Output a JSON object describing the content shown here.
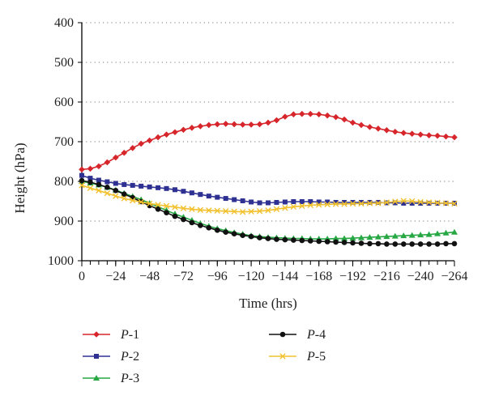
{
  "chart_data": {
    "type": "line",
    "xlabel": "Time (hrs)",
    "ylabel": "Height (hPa)",
    "xlim": [
      0,
      -264
    ],
    "ylim": [
      400,
      1000
    ],
    "y_inverted": true,
    "grid": "dotted horizontal",
    "legend_position": "bottom",
    "x_ticks": [
      {
        "value": 0,
        "label": "0"
      },
      {
        "value": -24,
        "label": "−24"
      },
      {
        "value": -48,
        "label": "−48"
      },
      {
        "value": -72,
        "label": "−72"
      },
      {
        "value": -96,
        "label": "−96"
      },
      {
        "value": -120,
        "label": "−120"
      },
      {
        "value": -144,
        "label": "−144"
      },
      {
        "value": -168,
        "label": "−168"
      },
      {
        "value": -192,
        "label": "−192"
      },
      {
        "value": -216,
        "label": "−216"
      },
      {
        "value": -240,
        "label": "−240"
      },
      {
        "value": -264,
        "label": "−264"
      }
    ],
    "y_ticks": [
      {
        "value": 400,
        "label": "400"
      },
      {
        "value": 500,
        "label": "500"
      },
      {
        "value": 600,
        "label": "600"
      },
      {
        "value": 700,
        "label": "700"
      },
      {
        "value": 800,
        "label": "800"
      },
      {
        "value": 900,
        "label": "900"
      },
      {
        "value": 1000,
        "label": "1000"
      }
    ],
    "x": [
      0,
      -6,
      -12,
      -18,
      -24,
      -30,
      -36,
      -42,
      -48,
      -54,
      -60,
      -66,
      -72,
      -78,
      -84,
      -90,
      -96,
      -102,
      -108,
      -114,
      -120,
      -126,
      -132,
      -138,
      -144,
      -150,
      -156,
      -162,
      -168,
      -174,
      -180,
      -186,
      -192,
      -198,
      -204,
      -210,
      -216,
      -222,
      -228,
      -234,
      -240,
      -246,
      -252,
      -258,
      -264
    ],
    "series": [
      {
        "name_prefix": "P",
        "name_suffix": "-1",
        "color": "#d7262b",
        "marker": "diamond",
        "values": [
          770,
          768,
          762,
          752,
          740,
          728,
          716,
          705,
          697,
          689,
          682,
          676,
          670,
          665,
          661,
          658,
          656,
          655,
          656,
          657,
          657,
          656,
          652,
          646,
          637,
          631,
          630,
          630,
          631,
          634,
          638,
          644,
          652,
          658,
          663,
          667,
          671,
          675,
          678,
          680,
          682,
          684,
          685,
          687,
          689
        ]
      },
      {
        "name_prefix": "P",
        "name_suffix": "-2",
        "color": "#2e3192",
        "marker": "square",
        "values": [
          785,
          792,
          797,
          801,
          805,
          808,
          810,
          812,
          814,
          816,
          818,
          821,
          825,
          829,
          833,
          837,
          840,
          843,
          846,
          849,
          852,
          854,
          854,
          853,
          852,
          851,
          851,
          851,
          852,
          852,
          853,
          853,
          853,
          853,
          853,
          853,
          854,
          854,
          855,
          855,
          855,
          855,
          855,
          855,
          855
        ]
      },
      {
        "name_prefix": "P",
        "name_suffix": "-3",
        "color": "#27a844",
        "marker": "triangle",
        "values": [
          800,
          804,
          809,
          815,
          822,
          830,
          838,
          846,
          855,
          864,
          873,
          882,
          890,
          898,
          906,
          913,
          919,
          924,
          929,
          933,
          937,
          939,
          941,
          942,
          943,
          944,
          944,
          945,
          945,
          945,
          944,
          944,
          943,
          942,
          941,
          940,
          939,
          938,
          937,
          936,
          935,
          934,
          932,
          930,
          928
        ]
      },
      {
        "name_prefix": "P",
        "name_suffix": "-4",
        "color": "#111111",
        "marker": "circle",
        "values": [
          798,
          802,
          808,
          815,
          823,
          832,
          841,
          851,
          861,
          870,
          879,
          888,
          896,
          904,
          911,
          917,
          923,
          928,
          932,
          936,
          939,
          942,
          944,
          946,
          947,
          948,
          949,
          950,
          951,
          952,
          953,
          954,
          955,
          956,
          957,
          957,
          958,
          958,
          958,
          958,
          958,
          958,
          958,
          957,
          957
        ]
      },
      {
        "name_prefix": "P",
        "name_suffix": "-5",
        "color": "#f2c12e",
        "marker": "x",
        "values": [
          810,
          817,
          823,
          830,
          837,
          843,
          848,
          852,
          856,
          859,
          862,
          865,
          868,
          870,
          872,
          873,
          874,
          875,
          876,
          877,
          876,
          875,
          873,
          870,
          867,
          864,
          862,
          860,
          859,
          858,
          857,
          857,
          856,
          856,
          855,
          855,
          853,
          851,
          849,
          850,
          852,
          853,
          854,
          855,
          856
        ]
      }
    ]
  }
}
